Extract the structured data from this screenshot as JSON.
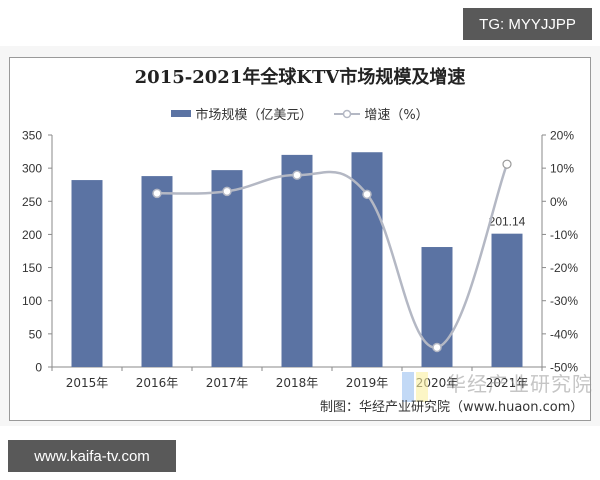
{
  "watermark_top": "TG: MYYJJPP",
  "watermark_bottom": "www.kaifa-tv.com",
  "overlay_watermark": "华经产业研究院",
  "credit": "制图：华经产业研究院（www.huaon.com）",
  "chart_data": {
    "type": "bar+line",
    "title": "2015-2021年全球KTV市场规模及增速",
    "categories": [
      "2015年",
      "2016年",
      "2017年",
      "2018年",
      "2019年",
      "2020年",
      "2021年"
    ],
    "series": [
      {
        "name": "市场规模（亿美元）",
        "type": "bar",
        "axis": "left",
        "color": "#5b73a3",
        "values": [
          282,
          288,
          297,
          320,
          324,
          181,
          201.14
        ]
      },
      {
        "name": "增速（%）",
        "type": "line",
        "axis": "right",
        "color": "#b4b8c4",
        "values": [
          null,
          2.4,
          3.0,
          7.9,
          2.1,
          -44.1,
          11.2
        ]
      }
    ],
    "data_labels": [
      {
        "category": "2021年",
        "series": "市场规模（亿美元）",
        "text": "201.14"
      }
    ],
    "left_axis": {
      "ylim": [
        0,
        350
      ],
      "ticks": [
        "0",
        "50",
        "100",
        "150",
        "200",
        "250",
        "300",
        "350"
      ]
    },
    "right_axis": {
      "ylim": [
        -50,
        20
      ],
      "ticks": [
        "-50%",
        "-40%",
        "-30%",
        "-20%",
        "-10%",
        "0%",
        "10%",
        "20%"
      ]
    },
    "legend": [
      "市场规模（亿美元）",
      "增速（%）"
    ],
    "legend_position": "top",
    "grid": false
  }
}
